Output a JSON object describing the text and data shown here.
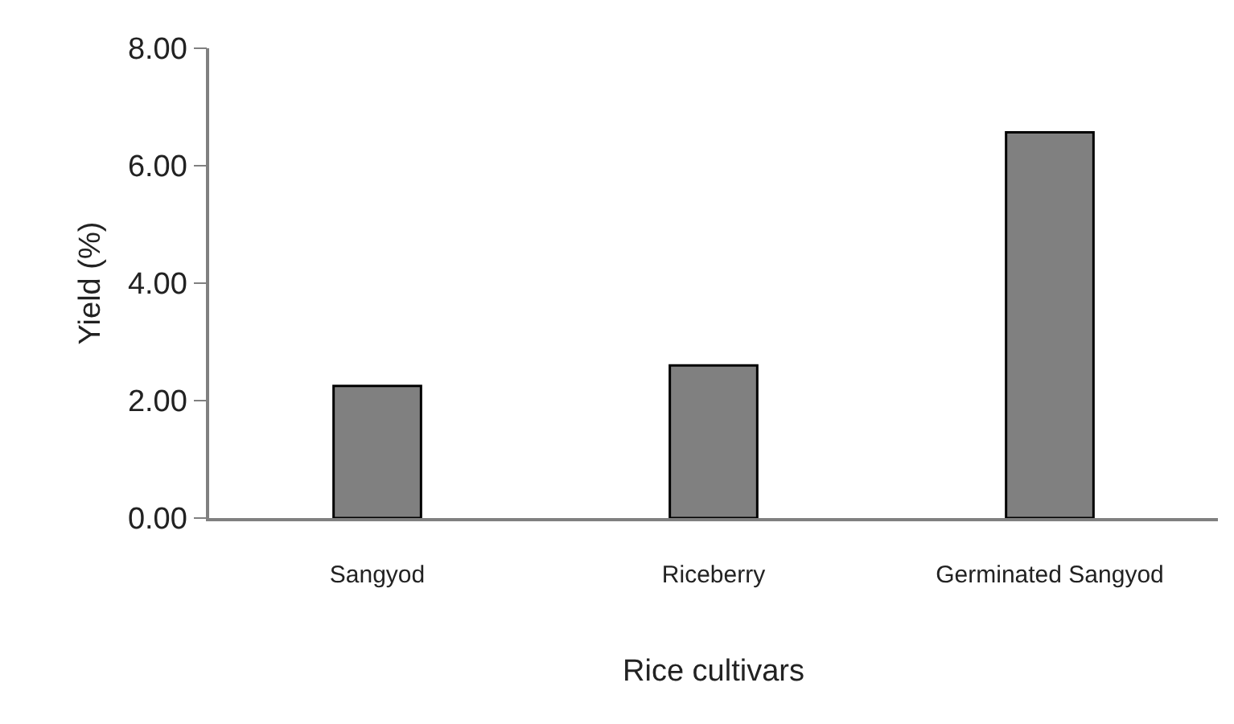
{
  "chart_data": {
    "type": "bar",
    "categories": [
      "Sangyod",
      "Riceberry",
      "Germinated Sangyod"
    ],
    "values": [
      2.25,
      2.6,
      6.57
    ],
    "color": "#808080",
    "xlabel": "Rice cultivars",
    "ylabel": "Yield (%)",
    "ylim": [
      0,
      8
    ],
    "yticks": [
      {
        "value": 0,
        "label": "0.00"
      },
      {
        "value": 2,
        "label": "2.00"
      },
      {
        "value": 4,
        "label": "4.00"
      },
      {
        "value": 6,
        "label": "6.00"
      },
      {
        "value": 8,
        "label": "8.00"
      }
    ],
    "tick_labels": [
      "x",
      "y"
    ]
  }
}
